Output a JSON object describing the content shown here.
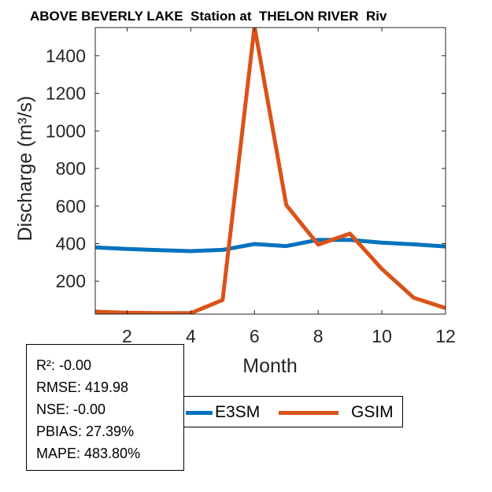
{
  "chart_data": {
    "type": "line",
    "title": "ABOVE BEVERLY LAKE  Station at  THELON RIVER  Riv",
    "xlabel": "Month",
    "ylabel": "Discharge (m³/s)",
    "xlim": [
      1,
      12
    ],
    "ylim": [
      25,
      1550
    ],
    "xticks": [
      2,
      4,
      6,
      8,
      10,
      12
    ],
    "yticks": [
      200,
      400,
      600,
      800,
      1000,
      1200,
      1400
    ],
    "grid": false,
    "x": [
      1,
      2,
      3,
      4,
      5,
      6,
      7,
      8,
      9,
      10,
      11,
      12
    ],
    "series": [
      {
        "name": "E3SM",
        "color": "#0072BD",
        "values": [
          380,
          372,
          365,
          360,
          367,
          398,
          387,
          420,
          420,
          405,
          396,
          385
        ]
      },
      {
        "name": "GSIM",
        "color": "#D95319",
        "values": [
          38,
          32,
          30,
          30,
          100,
          1555,
          605,
          395,
          453,
          265,
          112,
          57
        ]
      }
    ],
    "legend_placement": "bottom"
  },
  "stats": {
    "r2": "R²: -0.00",
    "rmse": "RMSE: 419.98",
    "nse": "NSE: -0.00",
    "pbias": "PBIAS: 27.39%",
    "mape": "MAPE: 483.80%"
  }
}
